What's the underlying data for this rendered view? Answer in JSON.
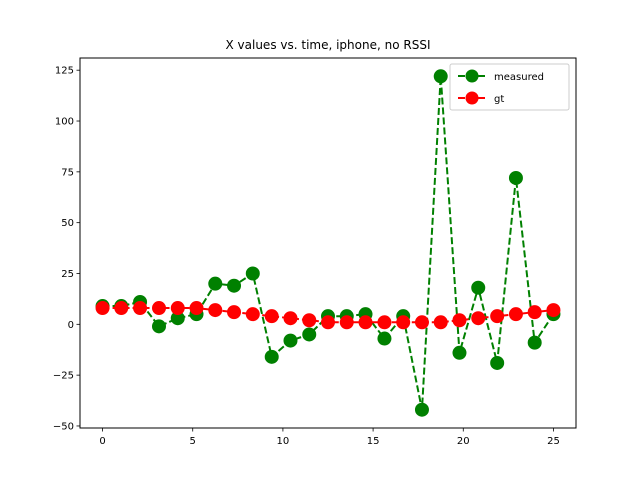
{
  "chart_data": {
    "type": "line",
    "title": "X values vs. time, iphone, no RSSI",
    "xlabel": "",
    "ylabel": "",
    "xlim": [
      -1.25,
      26.25
    ],
    "ylim": [
      -51,
      131
    ],
    "xticks": [
      0,
      5,
      10,
      15,
      20,
      25
    ],
    "yticks": [
      -50,
      -25,
      0,
      25,
      50,
      75,
      100,
      125
    ],
    "grid": false,
    "legend_position": "top-right",
    "series": [
      {
        "name": "measured",
        "color": "#008000",
        "line_style": "dashed",
        "marker": "circle",
        "x": [
          0,
          1.04,
          2.08,
          3.13,
          4.17,
          5.21,
          6.25,
          7.29,
          8.33,
          9.38,
          10.42,
          11.46,
          12.5,
          13.54,
          14.58,
          15.63,
          16.67,
          17.71,
          18.75,
          19.79,
          20.83,
          21.88,
          22.92,
          23.96,
          25
        ],
        "y": [
          9,
          9,
          11,
          -1,
          3,
          5,
          20,
          19,
          25,
          -16,
          -8,
          -5,
          4,
          4,
          5,
          -7,
          4,
          -42,
          122,
          -14,
          18,
          -19,
          72,
          -9,
          5
        ]
      },
      {
        "name": "gt",
        "color": "#ff0000",
        "line_style": "dashed",
        "marker": "circle",
        "x": [
          0,
          1.04,
          2.08,
          3.13,
          4.17,
          5.21,
          6.25,
          7.29,
          8.33,
          9.38,
          10.42,
          11.46,
          12.5,
          13.54,
          14.58,
          15.63,
          16.67,
          17.71,
          18.75,
          19.79,
          20.83,
          21.88,
          22.92,
          23.96,
          25
        ],
        "y": [
          8,
          8,
          8,
          8,
          8,
          8,
          7,
          6,
          5,
          4,
          3,
          2,
          1,
          1,
          1,
          1,
          1,
          1,
          1,
          2,
          3,
          4,
          5,
          6,
          7
        ]
      }
    ]
  }
}
